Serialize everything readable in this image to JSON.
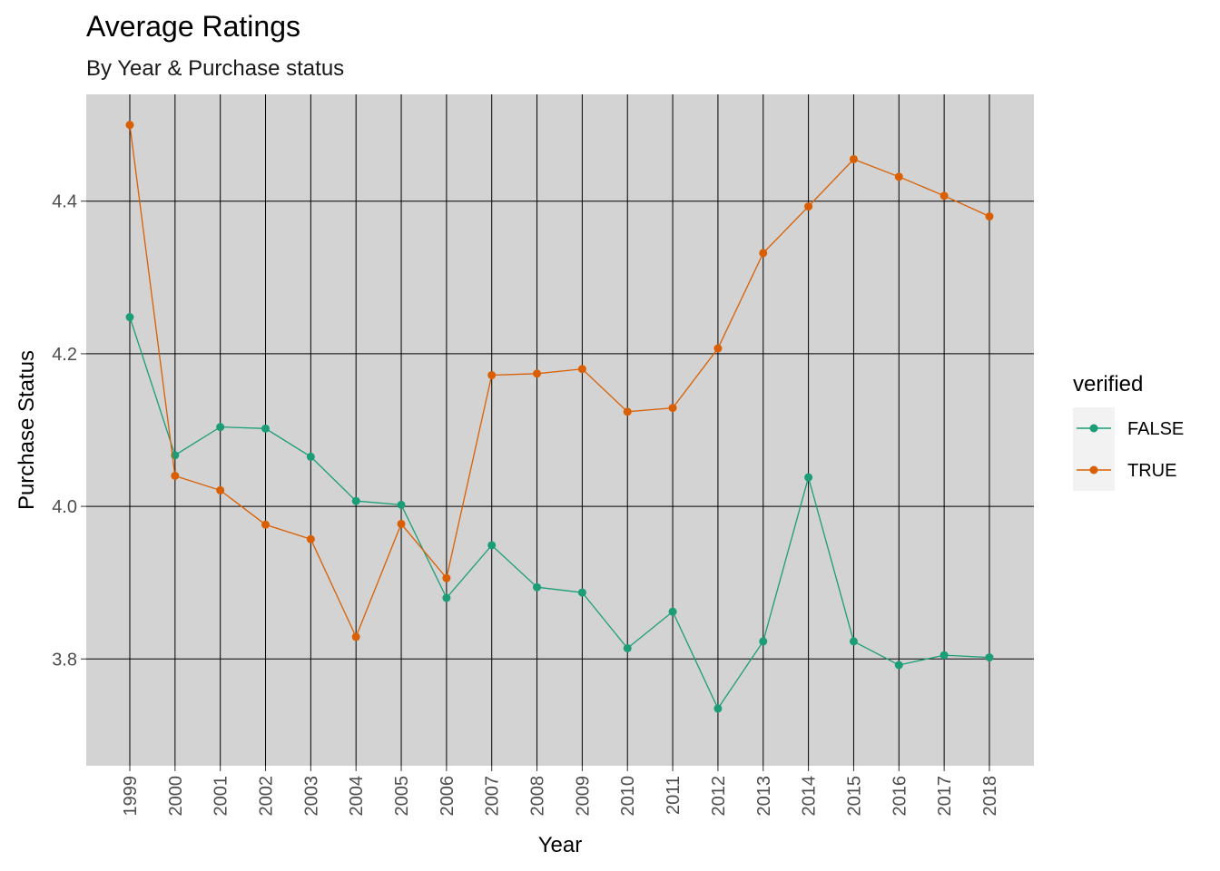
{
  "chart_data": {
    "type": "line",
    "title": "Average Ratings",
    "subtitle": "By Year & Purchase status",
    "xlabel": "Year",
    "ylabel": "Purchase Status",
    "categories": [
      "1999",
      "2000",
      "2001",
      "2002",
      "2003",
      "2004",
      "2005",
      "2006",
      "2007",
      "2008",
      "2009",
      "2010",
      "2011",
      "2012",
      "2013",
      "2014",
      "2015",
      "2016",
      "2017",
      "2018"
    ],
    "ylim": [
      3.66,
      4.54
    ],
    "yticks": [
      3.8,
      4.0,
      4.2,
      4.4
    ],
    "ytick_labels": [
      "3.8",
      "4.0",
      "4.2",
      "4.4"
    ],
    "grid": true,
    "legend": {
      "title": "verified",
      "position": "right"
    },
    "series": [
      {
        "name": "FALSE",
        "color": "#1b9e77",
        "values": [
          4.248,
          4.067,
          4.104,
          4.102,
          4.065,
          4.007,
          4.002,
          3.88,
          3.949,
          3.894,
          3.887,
          3.814,
          3.862,
          3.735,
          3.823,
          4.038,
          3.823,
          3.792,
          3.805,
          3.802
        ]
      },
      {
        "name": "TRUE",
        "color": "#d95f02",
        "values": [
          4.5,
          4.04,
          4.021,
          3.976,
          3.957,
          3.829,
          3.977,
          3.906,
          4.172,
          4.174,
          4.18,
          4.124,
          4.129,
          4.207,
          4.332,
          4.393,
          4.455,
          4.432,
          4.407,
          4.38
        ]
      }
    ]
  }
}
